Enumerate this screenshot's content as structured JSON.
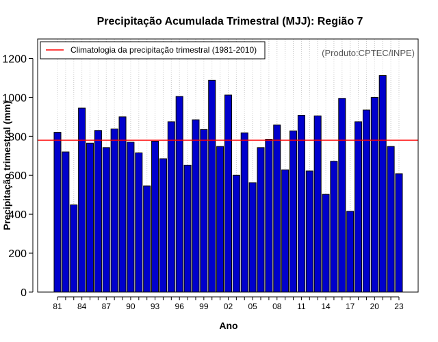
{
  "chart_data": {
    "type": "bar",
    "title": "Precipitação Acumulada Trimestral (MJJ): Região 7",
    "xlabel": "Ano",
    "ylabel": "Precipitação trimestral (mm)",
    "ylim": [
      0,
      1300
    ],
    "yticks": [
      0,
      200,
      400,
      600,
      800,
      1000,
      1200
    ],
    "grid": "vertical dotted at each bar",
    "credit": "(Produto:CPTEC/INPE)",
    "categories": [
      "1981",
      "1982",
      "1983",
      "1984",
      "1985",
      "1986",
      "1987",
      "1988",
      "1989",
      "1990",
      "1991",
      "1992",
      "1993",
      "1994",
      "1995",
      "1996",
      "1997",
      "1998",
      "1999",
      "2000",
      "2001",
      "2002",
      "2003",
      "2004",
      "2005",
      "2006",
      "2007",
      "2008",
      "2009",
      "2010",
      "2011",
      "2012",
      "2013",
      "2014",
      "2015",
      "2016",
      "2017",
      "2018",
      "2019",
      "2020",
      "2021",
      "2022",
      "2023"
    ],
    "xtick_labels": [
      "81",
      "84",
      "87",
      "90",
      "93",
      "96",
      "99",
      "02",
      "05",
      "08",
      "11",
      "14",
      "17",
      "20",
      "23"
    ],
    "xtick_indices": [
      0,
      3,
      6,
      9,
      12,
      15,
      18,
      21,
      24,
      27,
      30,
      33,
      36,
      39,
      42
    ],
    "values": [
      820,
      720,
      448,
      945,
      765,
      830,
      742,
      838,
      900,
      770,
      715,
      545,
      775,
      685,
      875,
      1005,
      652,
      885,
      835,
      1088,
      748,
      1012,
      600,
      818,
      562,
      742,
      785,
      858,
      628,
      828,
      908,
      622,
      905,
      502,
      672,
      995,
      415,
      875,
      935,
      1000,
      1112,
      748,
      608
    ],
    "bar_color": "#0000cc",
    "bar_edge_color": "#000000",
    "climatology": {
      "label": "Climatologia da precipitação trimestral (1981-2010)",
      "value": 780,
      "color": "#ff0000"
    },
    "legend_position": "top-left"
  }
}
